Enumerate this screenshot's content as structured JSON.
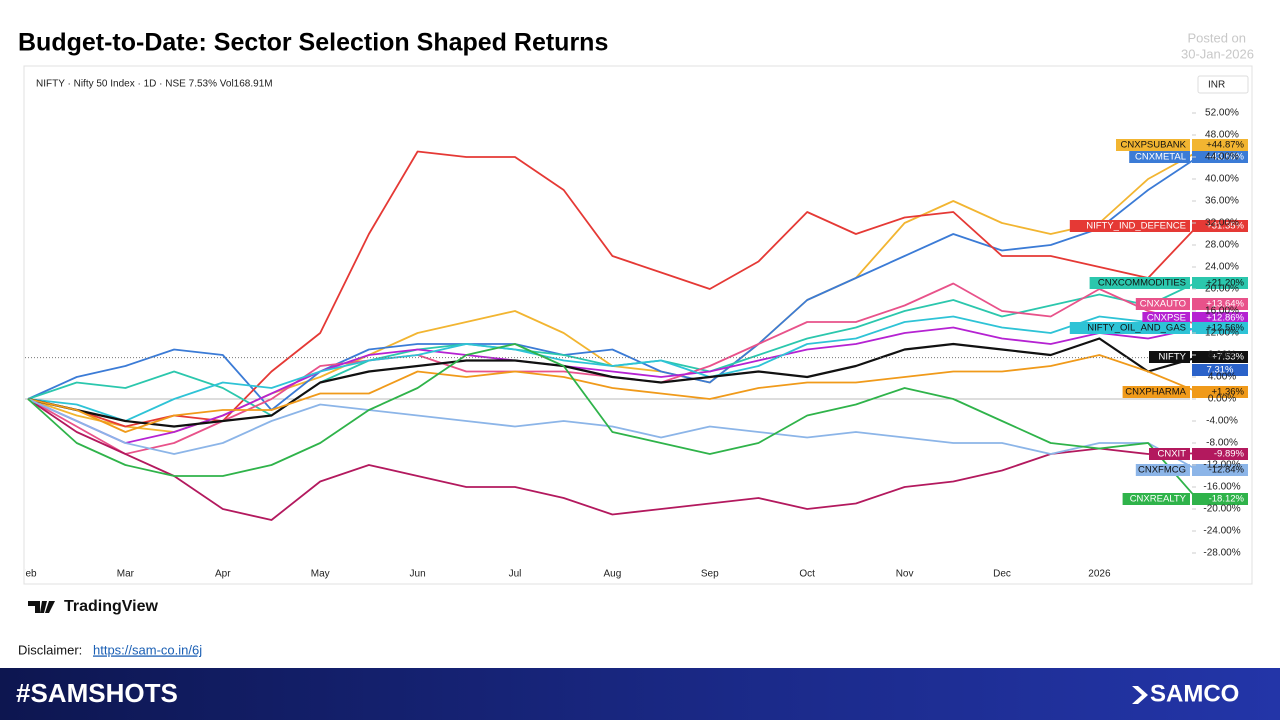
{
  "header": {
    "title": "Budget-to-Date: Sector Selection Shaped Returns",
    "posted_label": "Posted on",
    "posted_date": "30-Jan-2026"
  },
  "chart_data": {
    "type": "line",
    "symbol_info": "NIFTY · Nifty 50 Index · 1D · NSE  7.53%  Vol168.91M",
    "currency": "INR",
    "crosshair_label": "7.31%",
    "categories": [
      "Feb",
      null,
      "Mar",
      null,
      "Apr",
      null,
      "May",
      null,
      "Jun",
      null,
      "Jul",
      null,
      "Aug",
      null,
      "Sep",
      null,
      "Oct",
      null,
      "Nov",
      null,
      "Dec",
      null,
      "2026",
      null,
      null
    ],
    "ylim": [
      -30,
      54
    ],
    "yticks": [
      {
        "value": 52,
        "label": "52.00%"
      },
      {
        "value": 48,
        "label": "48.00%"
      },
      {
        "value": 44,
        "label": "44.00%"
      },
      {
        "value": 40,
        "label": "40.00%"
      },
      {
        "value": 36,
        "label": "36.00%"
      },
      {
        "value": 32,
        "label": "32.00%"
      },
      {
        "value": 28,
        "label": "28.00%"
      },
      {
        "value": 24,
        "label": "24.00%"
      },
      {
        "value": 20,
        "label": "20.00%"
      },
      {
        "value": 16,
        "label": "16.00%"
      },
      {
        "value": 12,
        "label": "12.00%"
      },
      {
        "value": 8,
        "label": "8.00%"
      },
      {
        "value": 4,
        "label": "4.00%"
      },
      {
        "value": 0,
        "label": "0.00%"
      },
      {
        "value": -4,
        "label": "-4.00%"
      },
      {
        "value": -8,
        "label": "-8.00%"
      },
      {
        "value": -12,
        "label": "-12.00%"
      },
      {
        "value": -16,
        "label": "-16.00%"
      },
      {
        "value": -20,
        "label": "-20.00%"
      },
      {
        "value": -24,
        "label": "-24.00%"
      },
      {
        "value": -28,
        "label": "-28.00%"
      }
    ],
    "series": [
      {
        "name": "CNXPSUBANK",
        "color": "#f2b531",
        "values": [
          0,
          -3,
          -5,
          -6,
          -3,
          1,
          4,
          8,
          12,
          14,
          16,
          12,
          6,
          5,
          3,
          10,
          18,
          22,
          32,
          36,
          32,
          30,
          32,
          40,
          44.87
        ],
        "value_labels": [
          null,
          null,
          null,
          null,
          null,
          null,
          null,
          null,
          null,
          null,
          null,
          null,
          null,
          null,
          null,
          null,
          null,
          null,
          null,
          null,
          null,
          null,
          null,
          null,
          "+44.87%"
        ]
      },
      {
        "name": "CNXMETAL",
        "color": "#3b7bd6",
        "values": [
          0,
          4,
          6,
          9,
          8,
          -2,
          5,
          9,
          10,
          10,
          10,
          8,
          9,
          5,
          3,
          10,
          18,
          22,
          26,
          30,
          27,
          28,
          31,
          38,
          43.86
        ],
        "value_labels": [
          null,
          null,
          null,
          null,
          null,
          null,
          null,
          null,
          null,
          null,
          null,
          null,
          null,
          null,
          null,
          null,
          null,
          null,
          null,
          null,
          null,
          null,
          null,
          null,
          "+43.86%"
        ]
      },
      {
        "name": "NIFTY_IND_DEFENCE",
        "color": "#e53935",
        "values": [
          0,
          -2,
          -5,
          -3,
          -4,
          5,
          12,
          30,
          45,
          44,
          44,
          38,
          26,
          23,
          20,
          25,
          34,
          30,
          33,
          34,
          26,
          26,
          24,
          22,
          31.35
        ],
        "value_labels": [
          null,
          null,
          null,
          null,
          null,
          null,
          null,
          null,
          null,
          null,
          null,
          null,
          null,
          null,
          null,
          null,
          null,
          null,
          null,
          null,
          null,
          null,
          null,
          null,
          "+31.35%"
        ]
      },
      {
        "name": "CNXCOMMODITIES",
        "color": "#2bc7ad",
        "values": [
          0,
          3,
          2,
          5,
          2,
          -3,
          3,
          7,
          9,
          10,
          9,
          8,
          6,
          7,
          5,
          8,
          11,
          13,
          16,
          18,
          15,
          17,
          19,
          17,
          21.2
        ],
        "value_labels": [
          null,
          null,
          null,
          null,
          null,
          null,
          null,
          null,
          null,
          null,
          null,
          null,
          null,
          null,
          null,
          null,
          null,
          null,
          null,
          null,
          null,
          null,
          null,
          null,
          "+21.20%"
        ]
      },
      {
        "name": "CNXAUTO",
        "color": "#e8528a",
        "values": [
          0,
          -5,
          -10,
          -8,
          -4,
          0,
          6,
          7,
          8,
          5,
          5,
          5,
          4,
          3,
          6,
          10,
          14,
          14,
          17,
          21,
          16,
          15,
          20,
          16,
          13.64
        ],
        "value_labels": [
          null,
          null,
          null,
          null,
          null,
          null,
          null,
          null,
          null,
          null,
          null,
          null,
          null,
          null,
          null,
          null,
          null,
          null,
          null,
          null,
          null,
          null,
          null,
          null,
          "+13.64%"
        ]
      },
      {
        "name": "CNXPSE",
        "color": "#b522d2",
        "values": [
          0,
          -4,
          -8,
          -6,
          -3,
          1,
          5,
          8,
          9,
          8,
          7,
          6,
          5,
          4,
          5,
          7,
          9,
          10,
          12,
          13,
          11,
          10,
          12,
          11,
          12.86
        ],
        "value_labels": [
          null,
          null,
          null,
          null,
          null,
          null,
          null,
          null,
          null,
          null,
          null,
          null,
          null,
          null,
          null,
          null,
          null,
          null,
          null,
          null,
          null,
          null,
          null,
          null,
          "+12.86%"
        ]
      },
      {
        "name": "NIFTY_OIL_AND_GAS",
        "color": "#2ec3d6",
        "values": [
          0,
          -1,
          -4,
          0,
          3,
          2,
          5,
          7,
          8,
          10,
          9,
          7,
          6,
          7,
          4,
          6,
          10,
          11,
          14,
          15,
          13,
          12,
          15,
          14,
          12.56
        ],
        "value_labels": [
          null,
          null,
          null,
          null,
          null,
          null,
          null,
          null,
          null,
          null,
          null,
          null,
          null,
          null,
          null,
          null,
          null,
          null,
          null,
          null,
          null,
          null,
          null,
          null,
          "+12.56%"
        ]
      },
      {
        "name": "NIFTY",
        "color": "#111111",
        "values": [
          0,
          -2,
          -4,
          -5,
          -4,
          -3,
          3,
          5,
          6,
          7,
          7,
          6,
          4,
          3,
          4,
          5,
          4,
          6,
          9,
          10,
          9,
          8,
          11,
          5,
          7.53
        ],
        "value_labels": [
          null,
          null,
          null,
          null,
          null,
          null,
          null,
          null,
          null,
          null,
          null,
          null,
          null,
          null,
          null,
          null,
          null,
          null,
          null,
          null,
          null,
          null,
          null,
          null,
          "+7.53%"
        ]
      },
      {
        "name": "CNXPHARMA",
        "color": "#f09a1a",
        "values": [
          0,
          -2,
          -6,
          -3,
          -2,
          -2,
          1,
          1,
          5,
          4,
          5,
          4,
          2,
          1,
          0,
          2,
          3,
          3,
          4,
          5,
          5,
          6,
          8,
          5,
          1.36
        ],
        "value_labels": [
          null,
          null,
          null,
          null,
          null,
          null,
          null,
          null,
          null,
          null,
          null,
          null,
          null,
          null,
          null,
          null,
          null,
          null,
          null,
          null,
          null,
          null,
          null,
          null,
          "+1.36%"
        ]
      },
      {
        "name": "CNXIT",
        "color": "#b3195e",
        "values": [
          0,
          -6,
          -10,
          -14,
          -20,
          -22,
          -15,
          -12,
          -14,
          -16,
          -16,
          -18,
          -21,
          -20,
          -19,
          -18,
          -20,
          -19,
          -16,
          -15,
          -13,
          -10,
          -9,
          -10,
          -9.89
        ],
        "value_labels": [
          null,
          null,
          null,
          null,
          null,
          null,
          null,
          null,
          null,
          null,
          null,
          null,
          null,
          null,
          null,
          null,
          null,
          null,
          null,
          null,
          null,
          null,
          null,
          null,
          "-9.89%"
        ]
      },
      {
        "name": "CNXFMCG",
        "color": "#8cb5e8",
        "values": [
          0,
          -4,
          -8,
          -10,
          -8,
          -4,
          -1,
          -2,
          -3,
          -4,
          -5,
          -4,
          -5,
          -7,
          -5,
          -6,
          -7,
          -6,
          -7,
          -8,
          -8,
          -10,
          -8,
          -8,
          -12.84
        ],
        "value_labels": [
          null,
          null,
          null,
          null,
          null,
          null,
          null,
          null,
          null,
          null,
          null,
          null,
          null,
          null,
          null,
          null,
          null,
          null,
          null,
          null,
          null,
          null,
          null,
          null,
          "-12.84%"
        ]
      },
      {
        "name": "CNXREALTY",
        "color": "#2fb34a",
        "values": [
          0,
          -8,
          -12,
          -14,
          -14,
          -12,
          -8,
          -2,
          2,
          8,
          10,
          6,
          -6,
          -8,
          -10,
          -8,
          -3,
          -1,
          2,
          0,
          -4,
          -8,
          -9,
          -8,
          -18.12
        ],
        "value_labels": [
          null,
          null,
          null,
          null,
          null,
          null,
          null,
          null,
          null,
          null,
          null,
          null,
          null,
          null,
          null,
          null,
          null,
          null,
          null,
          null,
          null,
          null,
          null,
          null,
          "-18.12%"
        ]
      }
    ]
  },
  "footer": {
    "brand": "TradingView",
    "disclaimer_label": "Disclaimer:",
    "disclaimer_link": "https://sam-co.in/6j",
    "hashtag": "#SAMSHOTS",
    "logo": "SAMCO"
  }
}
